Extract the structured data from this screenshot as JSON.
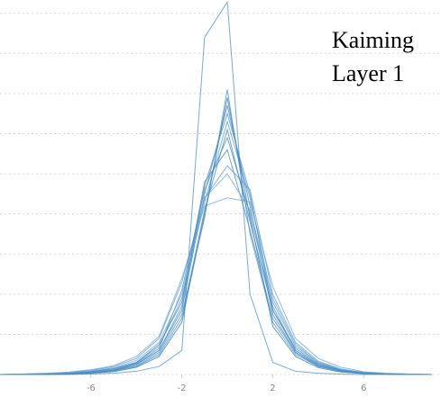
{
  "chart_data": {
    "type": "line",
    "title": "Kaiming",
    "subtitle": "Layer 1",
    "x": [
      -10,
      -9,
      -8,
      -7,
      -6,
      -5,
      -4,
      -3,
      -2,
      -1,
      0,
      1,
      2,
      3,
      4,
      5,
      6,
      7,
      8,
      9
    ],
    "series": [
      {
        "color": "#4a8fc6",
        "values": [
          0,
          0,
          0,
          0,
          0.01,
          0.03,
          0.08,
          0.2,
          0.6,
          8.4,
          9.28,
          2.0,
          0.3,
          0.08,
          0.03,
          0.01,
          0,
          0,
          0,
          0
        ]
      },
      {
        "color": "#3f86c2",
        "values": [
          0,
          0,
          0.01,
          0.02,
          0.05,
          0.1,
          0.25,
          0.6,
          1.6,
          4.5,
          6.7,
          4.2,
          1.5,
          0.55,
          0.2,
          0.08,
          0.03,
          0.01,
          0,
          0
        ]
      },
      {
        "color": "#5a9bd0",
        "values": [
          0,
          0.01,
          0.02,
          0.04,
          0.08,
          0.15,
          0.3,
          0.7,
          1.9,
          4.3,
          6.3,
          4.4,
          1.8,
          0.7,
          0.3,
          0.12,
          0.05,
          0.02,
          0.01,
          0
        ]
      },
      {
        "color": "#4a8fc6",
        "values": [
          0,
          0,
          0.01,
          0.02,
          0.06,
          0.12,
          0.28,
          0.65,
          2.1,
          4.6,
          5.9,
          4.0,
          1.7,
          0.6,
          0.25,
          0.1,
          0.04,
          0.01,
          0,
          0
        ]
      },
      {
        "color": "#6aa6d6",
        "values": [
          0,
          0.01,
          0.03,
          0.06,
          0.12,
          0.22,
          0.45,
          0.95,
          2.4,
          4.2,
          4.4,
          4.3,
          2.2,
          0.9,
          0.4,
          0.18,
          0.07,
          0.03,
          0.01,
          0
        ]
      },
      {
        "color": "#3f86c2",
        "values": [
          0,
          0,
          0.01,
          0.03,
          0.07,
          0.14,
          0.3,
          0.75,
          1.8,
          4.8,
          5.6,
          3.6,
          1.4,
          0.55,
          0.22,
          0.09,
          0.03,
          0.01,
          0,
          0
        ]
      },
      {
        "color": "#2f78b6",
        "values": [
          0,
          0,
          0,
          0.01,
          0.03,
          0.07,
          0.18,
          0.45,
          1.3,
          4.0,
          6.9,
          3.9,
          1.2,
          0.45,
          0.17,
          0.06,
          0.02,
          0.01,
          0,
          0
        ]
      },
      {
        "color": "#5a9bd0",
        "values": [
          0,
          0.01,
          0.02,
          0.05,
          0.1,
          0.2,
          0.4,
          0.9,
          2.3,
          4.4,
          5.2,
          4.6,
          2.0,
          0.8,
          0.33,
          0.14,
          0.05,
          0.02,
          0.01,
          0
        ]
      },
      {
        "color": "#4a8fc6",
        "values": [
          0,
          0,
          0.01,
          0.02,
          0.05,
          0.1,
          0.22,
          0.55,
          1.5,
          3.9,
          7.1,
          3.5,
          1.3,
          0.5,
          0.2,
          0.08,
          0.03,
          0.01,
          0,
          0
        ]
      },
      {
        "color": "#3f86c2",
        "values": [
          0,
          0,
          0.01,
          0.02,
          0.04,
          0.09,
          0.2,
          0.5,
          1.4,
          4.1,
          6.1,
          3.8,
          1.6,
          0.65,
          0.27,
          0.11,
          0.04,
          0.02,
          0,
          0
        ]
      },
      {
        "color": "#6aa6d6",
        "values": [
          0,
          0.01,
          0.02,
          0.04,
          0.09,
          0.17,
          0.35,
          0.8,
          2.0,
          4.4,
          5.0,
          4.1,
          1.9,
          0.75,
          0.3,
          0.12,
          0.05,
          0.02,
          0.01,
          0
        ]
      },
      {
        "color": "#4a8fc6",
        "values": [
          0,
          0,
          0.01,
          0.02,
          0.05,
          0.11,
          0.26,
          0.6,
          1.7,
          4.7,
          6.5,
          4.5,
          1.6,
          0.6,
          0.24,
          0.1,
          0.04,
          0.01,
          0,
          0
        ]
      }
    ],
    "xlim": [
      -10,
      9.4
    ],
    "xticks": [
      -6,
      -2,
      2,
      6
    ],
    "ylim": [
      0,
      9.33
    ],
    "yticks": [
      0,
      1,
      2,
      3,
      4,
      5,
      6,
      7,
      8,
      9
    ],
    "grid": true
  }
}
